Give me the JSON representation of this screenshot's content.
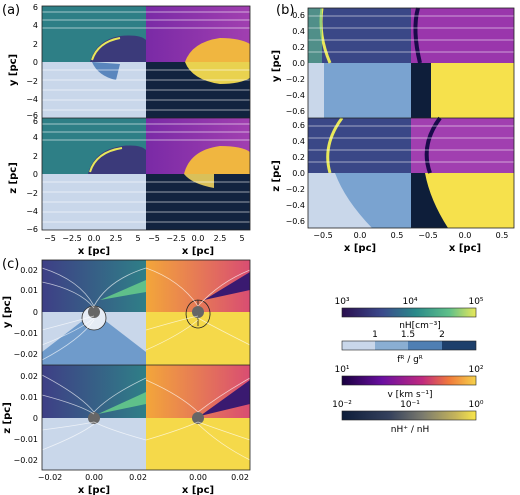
{
  "panels": {
    "a": {
      "label": "(a)",
      "y_ticks": [
        "6",
        "4",
        "2",
        "0",
        "−2",
        "−4",
        "−6"
      ],
      "z_ticks": [
        "6",
        "4",
        "2",
        "0",
        "−2",
        "−4",
        "−6"
      ],
      "x_ticks_left": [
        "−5",
        "−2.5",
        "0.0",
        "2.5",
        "5"
      ],
      "x_ticks_right": [
        "−5",
        "−2.5",
        "0.0",
        "2.5",
        "5"
      ],
      "ylabel_top": "y [pc]",
      "ylabel_bottom": "z [pc]",
      "xlabel": "x [pc]"
    },
    "b": {
      "label": "(b)",
      "y_ticks": [
        "0.6",
        "0.4",
        "0.2",
        "0.0",
        "−0.2",
        "−0.4",
        "−0.6"
      ],
      "z_ticks": [
        "0.6",
        "0.4",
        "0.2",
        "0.0",
        "−0.2",
        "−0.4",
        "−0.6"
      ],
      "x_ticks_left": [
        "−0.5",
        "0.0",
        "0.5"
      ],
      "x_ticks_right": [
        "−0.5",
        "0.0",
        "0.5"
      ],
      "ylabel_top": "y [pc]",
      "ylabel_bottom": "z [pc]",
      "xlabel": "x [pc]"
    },
    "c": {
      "label": "(c)",
      "y_ticks": [
        "0.02",
        "0.01",
        "0",
        "−0.01",
        "−0.02"
      ],
      "z_ticks": [
        "0.02",
        "0.01",
        "0",
        "−0.01",
        "−0.02"
      ],
      "x_ticks_left": [
        "−0.02",
        "0.00",
        "0.02"
      ],
      "x_ticks_right": [
        "0.00",
        "0.02"
      ],
      "ylabel_top": "y [pc]",
      "ylabel_bottom": "z [pc]",
      "xlabel": "x [pc]"
    }
  },
  "colorbars": [
    {
      "ticks": [
        "10³",
        "10⁴",
        "10⁵"
      ],
      "label": "nH[cm⁻³]",
      "colors": [
        "#2a0f4f",
        "#3b4a8c",
        "#2a8a8a",
        "#5fc08a",
        "#e8e85a"
      ]
    },
    {
      "ticks": [
        "1",
        "1.5",
        "2"
      ],
      "label": "fᴿ / gᴿ",
      "colors": [
        "#c9d7ea",
        "#8aaed2",
        "#4f7fb3",
        "#1d3f6b"
      ]
    },
    {
      "ticks": [
        "10¹",
        "10²"
      ],
      "label": "v [km s⁻¹]",
      "colors": [
        "#18003f",
        "#6a0fa0",
        "#c02a7f",
        "#f07a3c",
        "#f6d24a"
      ]
    },
    {
      "ticks": [
        "10⁻²",
        "10⁻¹",
        "10⁰"
      ],
      "label": "nH⁺ / nH",
      "colors": [
        "#0e1e3a",
        "#34405c",
        "#7a7a6e",
        "#c6b55a",
        "#f9e64b"
      ]
    }
  ]
}
